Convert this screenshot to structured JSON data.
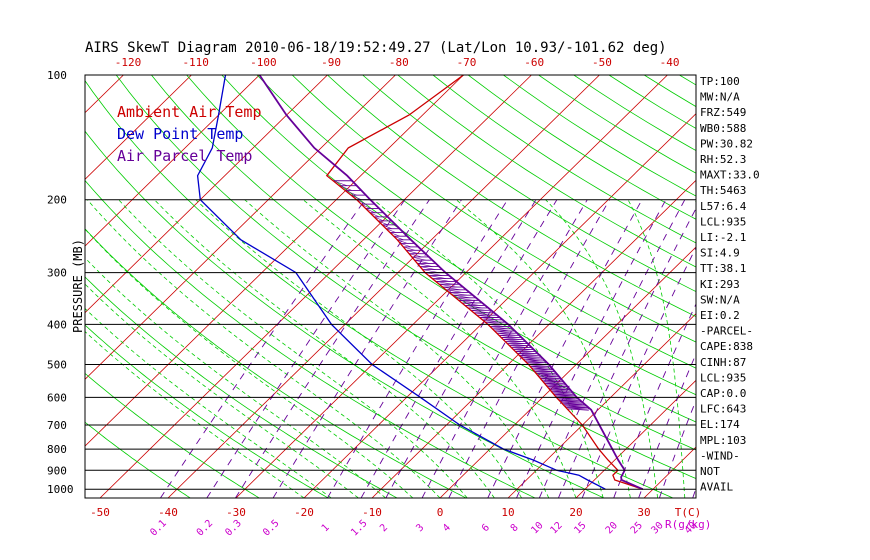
{
  "chart_data": {
    "type": "line",
    "title": "AIRS SkewT Diagram 2010-06-18/19:52:49.27 (Lat/Lon 10.93/-101.62 deg)",
    "ylabel": "PRESSURE (MB)",
    "xlabel": "T(C)",
    "mixing_ratio_unit": "R(g/kg)",
    "ylim": [
      1050,
      100
    ],
    "pressure_ticks": [
      "100",
      "200",
      "300",
      "400",
      "500",
      "600",
      "700",
      "800",
      "900",
      "1000"
    ],
    "bottom_temp_ticks": [
      "-50",
      "-40",
      "-30",
      "-20",
      "-10",
      "0",
      "10",
      "20",
      "30"
    ],
    "top_temp_ticks": [
      "-120",
      "-110",
      "-100",
      "-90",
      "-80",
      "-70",
      "-60",
      "-50",
      "-40"
    ],
    "mixing_ratio_ticks": [
      "0.1",
      "0.2",
      "0.3",
      "0.5",
      "1",
      "1.5",
      "2",
      "3",
      "4",
      "6",
      "8",
      "10",
      "12",
      "15",
      "20",
      "25",
      "30",
      "40"
    ],
    "legend": {
      "placement": "top-left",
      "items": [
        {
          "label": "Ambient Air Temp",
          "color": "#cc0000"
        },
        {
          "label": "Dew Point Temp",
          "color": "#0000cc"
        },
        {
          "label": "Air Parcel Temp",
          "color": "#660099"
        }
      ]
    },
    "grid": true,
    "colors": {
      "isotherm": "#cc0000",
      "dry_adiabat": "#00cc00",
      "moist_adiabat": "#00cc00",
      "mixing_ratio": "#660099",
      "isobar": "#000000",
      "temperature": "#cc0000",
      "dewpoint": "#0000cc",
      "parcel": "#660099",
      "cape_hatch": "#660099"
    },
    "series": [
      {
        "name": "Ambient Air Temp",
        "pressure": [
          1000,
          950,
          925,
          900,
          850,
          800,
          700,
          600,
          500,
          400,
          300,
          250,
          200,
          175,
          150,
          125,
          100
        ],
        "temperature": [
          28.5,
          23,
          22,
          22,
          19,
          16,
          10,
          2,
          -7,
          -19,
          -36,
          -45,
          -57,
          -65,
          -66,
          -62,
          -60
        ]
      },
      {
        "name": "Dew Point Temp",
        "pressure": [
          1000,
          950,
          925,
          900,
          850,
          800,
          700,
          600,
          500,
          400,
          300,
          250,
          200,
          175,
          150,
          125,
          100
        ],
        "temperature": [
          23,
          19,
          17,
          13,
          8,
          2,
          -8,
          -18,
          -30,
          -42,
          -55,
          -68,
          -80,
          -84,
          -86,
          -90,
          -95
        ]
      },
      {
        "name": "Air Parcel Temp",
        "pressure": [
          1000,
          950,
          935,
          900,
          850,
          800,
          700,
          643,
          600,
          500,
          400,
          300,
          250,
          200,
          175,
          150,
          125,
          100
        ],
        "temperature": [
          28.5,
          24,
          23.5,
          23,
          20.5,
          18,
          12.5,
          9,
          5,
          -4,
          -16,
          -33,
          -43,
          -55,
          -62,
          -71,
          -80,
          -90
        ]
      }
    ],
    "indices": [
      {
        "label": "TP:100"
      },
      {
        "label": "MW:N/A"
      },
      {
        "label": "FRZ:549"
      },
      {
        "label": "WB0:588"
      },
      {
        "label": "PW:30.82"
      },
      {
        "label": "RH:52.3"
      },
      {
        "label": "MAXT:33.0"
      },
      {
        "label": "TH:5463"
      },
      {
        "label": "L57:6.4"
      },
      {
        "label": "LCL:935"
      },
      {
        "label": "LI:-2.1"
      },
      {
        "label": "SI:4.9"
      },
      {
        "label": "TT:38.1"
      },
      {
        "label": "KI:293"
      },
      {
        "label": "SW:N/A"
      },
      {
        "label": "EI:0.2"
      },
      {
        "label": "-PARCEL-"
      },
      {
        "label": "CAPE:838"
      },
      {
        "label": "CINH:87"
      },
      {
        "label": "LCL:935"
      },
      {
        "label": "CAP:0.0"
      },
      {
        "label": "LFC:643"
      },
      {
        "label": "EL:174"
      },
      {
        "label": "MPL:103"
      },
      {
        "label": "-WIND-"
      },
      {
        "label": "NOT"
      },
      {
        "label": "AVAIL"
      }
    ]
  }
}
